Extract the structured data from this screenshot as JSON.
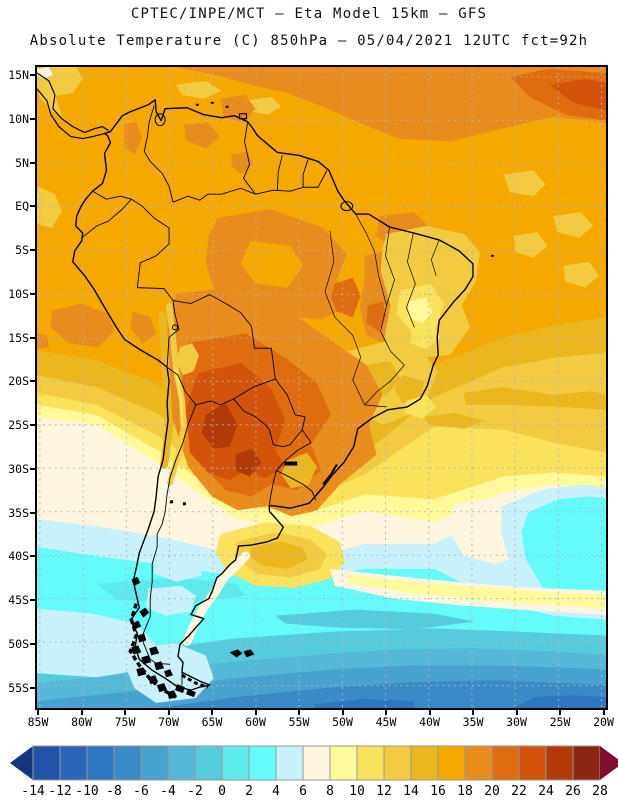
{
  "header": {
    "line1": "CPTEC/INPE/MCT –  Eta Model 15km – GFS",
    "line2": "Absolute Temperature (C) 850hPa – 05/04/2021 12UTC fct=92h"
  },
  "map": {
    "lat_labels": [
      "15N",
      "10N",
      "5N",
      "EQ",
      "5S",
      "10S",
      "15S",
      "20S",
      "25S",
      "30S",
      "35S",
      "40S",
      "45S",
      "50S",
      "55S"
    ],
    "lon_labels": [
      "85W",
      "80W",
      "75W",
      "70W",
      "65W",
      "60W",
      "55W",
      "50W",
      "45W",
      "40W",
      "35W",
      "30W",
      "25W",
      "20W"
    ],
    "grid_color": "#b4b4b4",
    "border_color": "#000000"
  },
  "colorbar": {
    "tick_labels": [
      "-14",
      "-12",
      "-10",
      "-8",
      "-6",
      "-4",
      "-2",
      "0",
      "2",
      "4",
      "6",
      "8",
      "10",
      "12",
      "14",
      "16",
      "18",
      "20",
      "22",
      "24",
      "26",
      "28"
    ],
    "segment_border_color": "#979797",
    "underflow_arrow_color": "#17357F",
    "overflow_arrow_color": "#7E0E2A"
  },
  "chart_data": {
    "type": "heatmap",
    "title": "CPTEC/INPE/MCT –  Eta Model 15km – GFS",
    "subtitle": "Absolute Temperature (C) 850hPa – 05/04/2021 12UTC fct=92h",
    "source": "CPTEC/INPE/MCT",
    "model": "Eta Model 15km",
    "boundary_model": "GFS",
    "variable": "Absolute Temperature",
    "units": "C",
    "pressure_level": "850hPa",
    "valid_run": "05/04/2021 12UTC",
    "forecast_hour": "fct=92h",
    "lat_ticks": [
      "15N",
      "10N",
      "5N",
      "EQ",
      "5S",
      "10S",
      "15S",
      "20S",
      "25S",
      "30S",
      "35S",
      "40S",
      "45S",
      "50S",
      "55S"
    ],
    "lon_ticks": [
      "85W",
      "80W",
      "75W",
      "70W",
      "65W",
      "60W",
      "55W",
      "50W",
      "45W",
      "40W",
      "35W",
      "30W",
      "25W",
      "20W"
    ],
    "scale_min": -14,
    "scale_max": 28,
    "scale_step": 2,
    "palette": [
      {
        "range": "-14 to -12",
        "color": "#2353A8"
      },
      {
        "range": "-12 to -10",
        "color": "#2B64B8"
      },
      {
        "range": "-10 to -8",
        "color": "#2E76C0"
      },
      {
        "range": "-8 to -6",
        "color": "#3A8AC8"
      },
      {
        "range": "-6 to -4",
        "color": "#47A2D0"
      },
      {
        "range": "-4 to -2",
        "color": "#55B8D8"
      },
      {
        "range": "-2 to 0",
        "color": "#56CBDD"
      },
      {
        "range": "0 to 2",
        "color": "#5EEAEA"
      },
      {
        "range": "2 to 4",
        "color": "#66FBFB"
      },
      {
        "range": "4 to 6",
        "color": "#C9F1FB"
      },
      {
        "range": "6 to 8",
        "color": "#FDF5DE"
      },
      {
        "range": "8 to 10",
        "color": "#FEFA9B"
      },
      {
        "range": "10 to 12",
        "color": "#FAE25C"
      },
      {
        "range": "12 to 14",
        "color": "#F2CB43"
      },
      {
        "range": "14 to 16",
        "color": "#EBB61E"
      },
      {
        "range": "16 to 18",
        "color": "#F5A800"
      },
      {
        "range": "18 to 20",
        "color": "#E98C1E"
      },
      {
        "range": "20 to 22",
        "color": "#E06C10"
      },
      {
        "range": "22 to 24",
        "color": "#D4530A"
      },
      {
        "range": "24 to 26",
        "color": "#B13A08"
      },
      {
        "range": "26 to 28",
        "color": "#8C2612"
      }
    ],
    "field_summary": [
      {
        "feature": "hot core over Paraguay / northern Argentina",
        "approx_temp_c": "22 to 26"
      },
      {
        "feature": "warm band over tropical North Atlantic near 10N",
        "approx_temp_c": "18 to 24"
      },
      {
        "feature": "broad warm air mass over Amazon basin",
        "approx_temp_c": "16 to 20"
      },
      {
        "feature": "milder gold/yellow zone over NE and SE Brazil",
        "approx_temp_c": "10 to 16"
      },
      {
        "feature": "cool cyan pocket in mid South Atlantic near 35-45S",
        "approx_temp_c": "2 to 6"
      },
      {
        "feature": "cold maritime air south of 45S",
        "approx_temp_c": "-8 to 2"
      }
    ]
  }
}
